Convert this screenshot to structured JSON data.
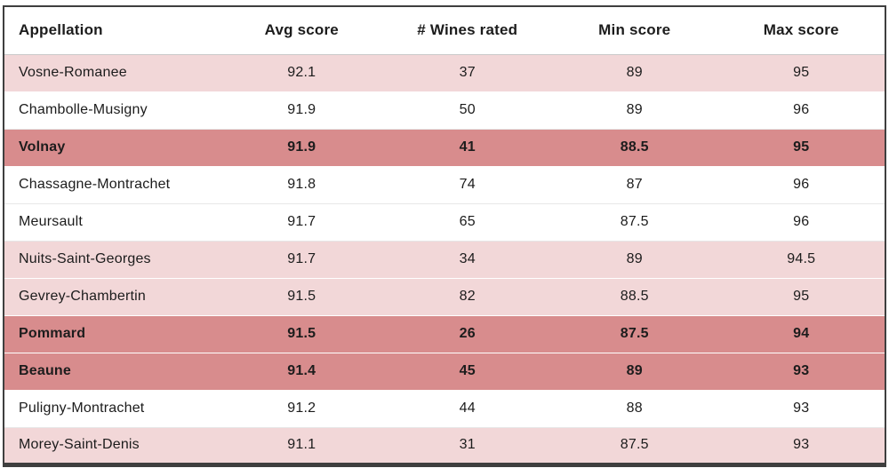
{
  "chart_data": {
    "type": "table",
    "columns": [
      "Appellation",
      "Avg score",
      "# Wines rated",
      "Min score",
      "Max score"
    ],
    "rows": [
      {
        "appellation": "Vosne-Romanee",
        "avg_score": "92.1",
        "wines_rated": "37",
        "min_score": "89",
        "max_score": "95",
        "variant": "light"
      },
      {
        "appellation": "Chambolle-Musigny",
        "avg_score": "91.9",
        "wines_rated": "50",
        "min_score": "89",
        "max_score": "96",
        "variant": "white"
      },
      {
        "appellation": "Volnay",
        "avg_score": "91.9",
        "wines_rated": "41",
        "min_score": "88.5",
        "max_score": "95",
        "variant": "highlight"
      },
      {
        "appellation": "Chassagne-Montrachet",
        "avg_score": "91.8",
        "wines_rated": "74",
        "min_score": "87",
        "max_score": "96",
        "variant": "white"
      },
      {
        "appellation": "Meursault",
        "avg_score": "91.7",
        "wines_rated": "65",
        "min_score": "87.5",
        "max_score": "96",
        "variant": "white"
      },
      {
        "appellation": "Nuits-Saint-Georges",
        "avg_score": "91.7",
        "wines_rated": "34",
        "min_score": "89",
        "max_score": "94.5",
        "variant": "light"
      },
      {
        "appellation": "Gevrey-Chambertin",
        "avg_score": "91.5",
        "wines_rated": "82",
        "min_score": "88.5",
        "max_score": "95",
        "variant": "light"
      },
      {
        "appellation": "Pommard",
        "avg_score": "91.5",
        "wines_rated": "26",
        "min_score": "87.5",
        "max_score": "94",
        "variant": "highlight"
      },
      {
        "appellation": "Beaune",
        "avg_score": "91.4",
        "wines_rated": "45",
        "min_score": "89",
        "max_score": "93",
        "variant": "highlight"
      },
      {
        "appellation": "Puligny-Montrachet",
        "avg_score": "91.2",
        "wines_rated": "44",
        "min_score": "88",
        "max_score": "93",
        "variant": "white"
      },
      {
        "appellation": "Morey-Saint-Denis",
        "avg_score": "91.1",
        "wines_rated": "31",
        "min_score": "87.5",
        "max_score": "93",
        "variant": "light"
      }
    ],
    "title": "",
    "layout": {
      "first_column_align": "left",
      "other_columns_align": "center",
      "grid": "row-separators",
      "highlighted_rows": [
        "Volnay",
        "Pommard",
        "Beaune"
      ]
    }
  },
  "colors": {
    "row_light": "#f2d7d8",
    "row_highlight": "#d88c8d",
    "row_white": "#ffffff",
    "border": "#3f3f3f",
    "text": "#1c1c1c"
  }
}
